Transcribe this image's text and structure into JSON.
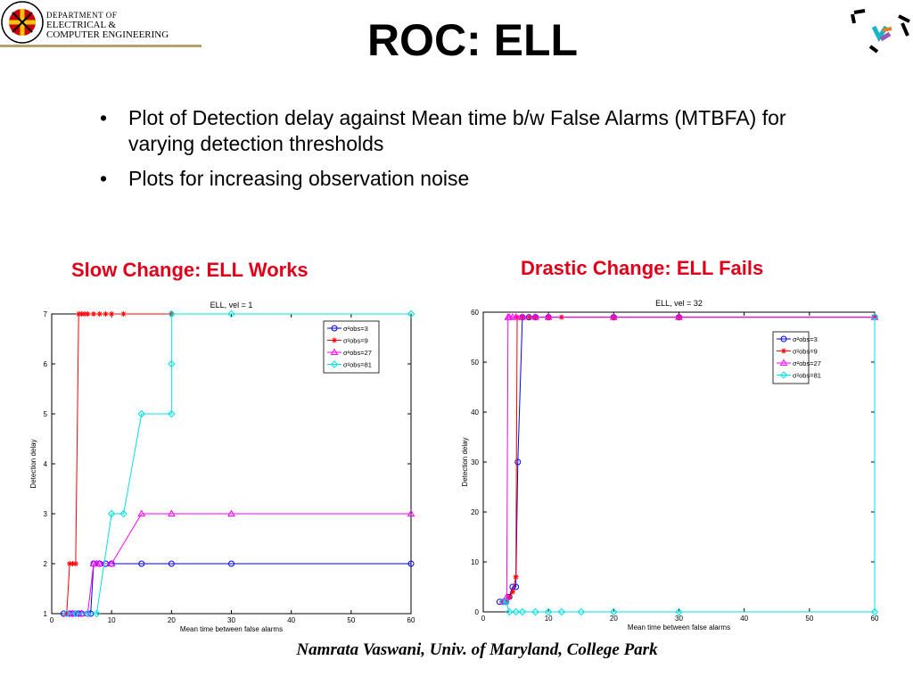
{
  "header": {
    "logo_lines": [
      "DEPARTMENT OF",
      "ELECTRICAL &",
      "COMPUTER ENGINEERING"
    ],
    "seal_icon": "university-seal-icon",
    "corner_logo_icon": "ece-corner-logo-icon",
    "colors": {
      "seal_red": "#cc0000",
      "seal_gold": "#f1c40f",
      "bar_gold": "#b5a26a"
    }
  },
  "slide": {
    "title": "ROC: ELL",
    "bullets": [
      "Plot of Detection delay against Mean time b/w False Alarms (MTBFA) for varying detection thresholds",
      "Plots for increasing observation noise"
    ],
    "left_caption": "Slow Change: ELL Works",
    "right_caption": "Drastic Change: ELL Fails",
    "footer": "Namrata Vaswani, Univ. of Maryland, College Park",
    "caption_color": "#e0001a"
  },
  "chart_data": [
    {
      "type": "line",
      "title": "ELL, vel = 1",
      "xlabel": "Mean time between false alarms",
      "ylabel": "Detection delay",
      "xlim": [
        0,
        60
      ],
      "ylim": [
        1,
        7
      ],
      "xticks": [
        0,
        10,
        20,
        30,
        40,
        50,
        60
      ],
      "yticks": [
        1,
        2,
        3,
        4,
        5,
        6,
        7
      ],
      "legend_position": "top-right",
      "series": [
        {
          "name": "σ²obs=3",
          "color": "#0000ff",
          "marker": "circle",
          "points": [
            [
              2,
              1
            ],
            [
              3,
              1
            ],
            [
              3.5,
              1
            ],
            [
              4,
              1
            ],
            [
              4.5,
              1
            ],
            [
              5,
              1
            ],
            [
              6,
              1
            ],
            [
              6.5,
              1
            ],
            [
              7,
              2
            ],
            [
              8,
              2
            ],
            [
              9,
              2
            ],
            [
              10,
              2
            ],
            [
              15,
              2
            ],
            [
              20,
              2
            ],
            [
              30,
              2
            ],
            [
              60,
              2
            ]
          ]
        },
        {
          "name": "σ²obs=9",
          "color": "#ff0000",
          "marker": "star",
          "points": [
            [
              2.5,
              1
            ],
            [
              3,
              2
            ],
            [
              3.5,
              2
            ],
            [
              4,
              2
            ],
            [
              4.5,
              7
            ],
            [
              5,
              7
            ],
            [
              5.5,
              7
            ],
            [
              6,
              7
            ],
            [
              7,
              7
            ],
            [
              8,
              7
            ],
            [
              9,
              7
            ],
            [
              10,
              7
            ],
            [
              12,
              7
            ],
            [
              20,
              7
            ]
          ]
        },
        {
          "name": "σ²obs=27",
          "color": "#ff00ff",
          "marker": "triangle",
          "points": [
            [
              2.5,
              1
            ],
            [
              3,
              1
            ],
            [
              3.5,
              1
            ],
            [
              4,
              1
            ],
            [
              5,
              1
            ],
            [
              6,
              1
            ],
            [
              7,
              2
            ],
            [
              7.5,
              2
            ],
            [
              8,
              2
            ],
            [
              10,
              2
            ],
            [
              15,
              3
            ],
            [
              20,
              3
            ],
            [
              30,
              3
            ],
            [
              60,
              3
            ]
          ]
        },
        {
          "name": "σ²obs=81",
          "color": "#00e0e0",
          "marker": "diamond",
          "points": [
            [
              2.5,
              1
            ],
            [
              4,
              1
            ],
            [
              6,
              1
            ],
            [
              7.5,
              1
            ],
            [
              10,
              3
            ],
            [
              12,
              3
            ],
            [
              15,
              5
            ],
            [
              20,
              5
            ],
            [
              20,
              6
            ],
            [
              20,
              7
            ],
            [
              30,
              7
            ],
            [
              60,
              7
            ]
          ]
        }
      ]
    },
    {
      "type": "line",
      "title": "ELL, vel = 32",
      "xlabel": "Mean time between false alarms",
      "ylabel": "Detection delay",
      "xlim": [
        0,
        60
      ],
      "ylim": [
        0,
        60
      ],
      "xticks": [
        0,
        10,
        20,
        30,
        40,
        50,
        60
      ],
      "yticks": [
        0,
        10,
        20,
        30,
        40,
        50,
        60
      ],
      "legend_position": "top-right",
      "series": [
        {
          "name": "σ²obs=3",
          "color": "#0000ff",
          "marker": "circle",
          "points": [
            [
              2.5,
              2
            ],
            [
              3,
              2
            ],
            [
              3.5,
              2
            ],
            [
              4,
              3
            ],
            [
              4.5,
              5
            ],
            [
              5,
              5
            ],
            [
              5.3,
              30
            ],
            [
              6,
              59
            ],
            [
              7,
              59
            ],
            [
              8,
              59
            ],
            [
              10,
              59
            ],
            [
              20,
              59
            ],
            [
              30,
              59
            ],
            [
              60,
              59
            ]
          ]
        },
        {
          "name": "σ²obs=9",
          "color": "#ff0000",
          "marker": "star",
          "points": [
            [
              3,
              2
            ],
            [
              3.5,
              2
            ],
            [
              4,
              3
            ],
            [
              4.5,
              4
            ],
            [
              5,
              7
            ],
            [
              5.2,
              59
            ],
            [
              6,
              59
            ],
            [
              7,
              59
            ],
            [
              8,
              59
            ],
            [
              10,
              59
            ],
            [
              12,
              59
            ],
            [
              20,
              59
            ],
            [
              30,
              59
            ],
            [
              60,
              59
            ]
          ]
        },
        {
          "name": "σ²obs=27",
          "color": "#ff00ff",
          "marker": "triangle",
          "points": [
            [
              3,
              2
            ],
            [
              3.3,
              2
            ],
            [
              3.6,
              3
            ],
            [
              3.8,
              59
            ],
            [
              4,
              59
            ],
            [
              4.5,
              59
            ],
            [
              5,
              59
            ],
            [
              6,
              59
            ],
            [
              8,
              59
            ],
            [
              10,
              59
            ],
            [
              20,
              59
            ],
            [
              30,
              59
            ],
            [
              60,
              59
            ]
          ]
        },
        {
          "name": "σ²obs=81",
          "color": "#00e0e0",
          "marker": "diamond",
          "points": [
            [
              3,
              2
            ],
            [
              3.5,
              2
            ],
            [
              4,
              0
            ],
            [
              5,
              0
            ],
            [
              6,
              0
            ],
            [
              8,
              0
            ],
            [
              10,
              0
            ],
            [
              12,
              0
            ],
            [
              15,
              0
            ],
            [
              20,
              0
            ],
            [
              30,
              0
            ],
            [
              60,
              0
            ],
            [
              60,
              59
            ]
          ]
        }
      ]
    }
  ]
}
